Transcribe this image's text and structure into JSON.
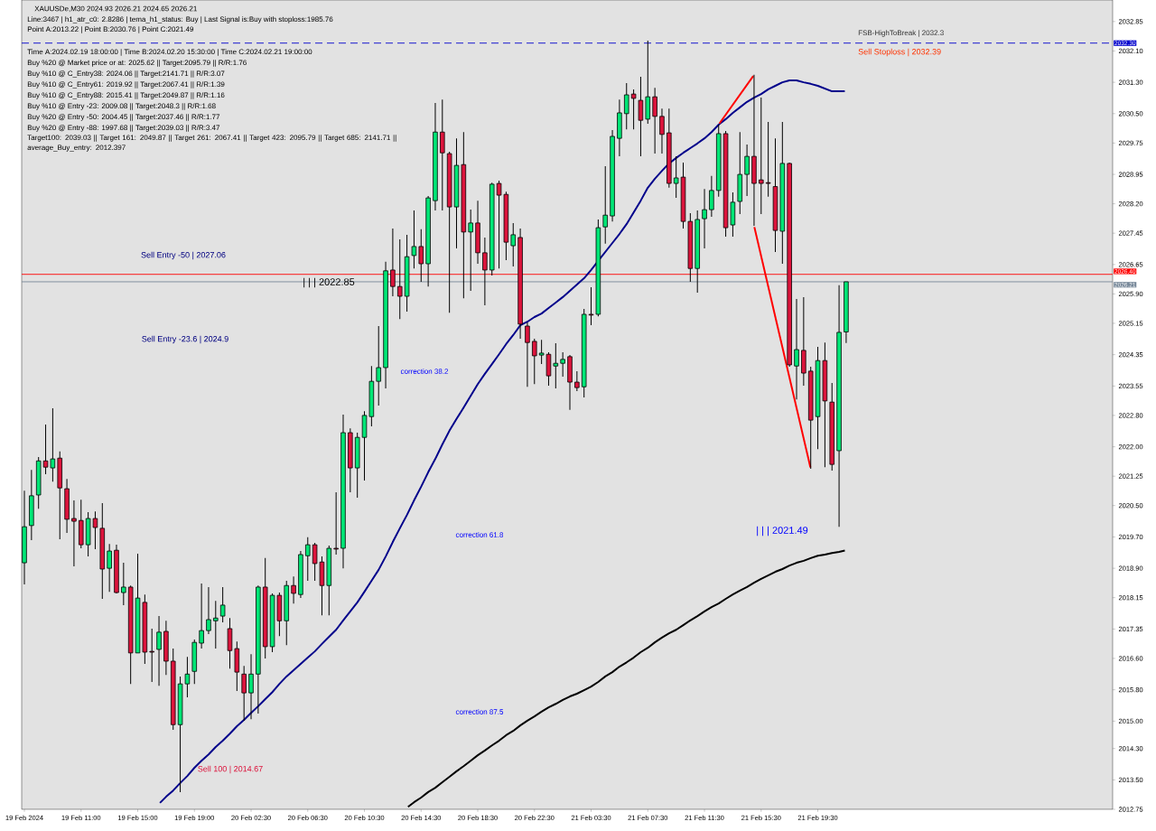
{
  "chart_data": {
    "type": "candlestick",
    "title": "XAUUSDe,M30  2024.93 2026.21 2024.65 2026.21",
    "categories": [
      "19 Feb 2024",
      null,
      null,
      null,
      null,
      null,
      null,
      null,
      "19 Feb 11:00",
      null,
      null,
      null,
      null,
      null,
      null,
      null,
      "19 Feb 15:00",
      null,
      null,
      null,
      null,
      null,
      null,
      null,
      "19 Feb 19:00",
      null,
      null,
      null,
      null,
      null,
      null,
      null,
      "20 Feb 02:30",
      null,
      null,
      null,
      null,
      null,
      null,
      null,
      "20 Feb 06:30",
      null,
      null,
      null,
      null,
      null,
      null,
      null,
      "20 Feb 10:30",
      null,
      null,
      null,
      null,
      null,
      null,
      null,
      "20 Feb 14:30",
      null,
      null,
      null,
      null,
      null,
      null,
      null,
      "20 Feb 18:30",
      null,
      null,
      null,
      null,
      null,
      null,
      null,
      "20 Feb 22:30",
      null,
      null,
      null,
      null,
      null,
      null,
      null,
      "21 Feb 03:30",
      null,
      null,
      null,
      null,
      null,
      null,
      null,
      "21 Feb 07:30",
      null,
      null,
      null,
      null,
      null,
      null,
      null,
      "21 Feb 11:30",
      null,
      null,
      null,
      null,
      null,
      null,
      null,
      "21 Feb 15:30",
      null,
      null,
      null,
      null,
      null,
      null,
      null,
      "21 Feb 19:30",
      null,
      null,
      null,
      null
    ],
    "series": [
      {
        "type": "candlestick",
        "ohlc": [
          [
            2019.04,
            2020.88,
            2018.49,
            2019.96
          ],
          [
            2019.99,
            2021.41,
            2019.62,
            2020.75
          ],
          [
            2020.77,
            2021.74,
            2020.42,
            2021.64
          ],
          [
            2021.64,
            2022.57,
            2021.3,
            2021.48
          ],
          [
            2021.46,
            2022.98,
            2021.11,
            2021.69
          ],
          [
            2021.71,
            2021.88,
            2019.64,
            2020.95
          ],
          [
            2020.93,
            2021.18,
            2019.8,
            2020.15
          ],
          [
            2020.17,
            2020.63,
            2018.95,
            2020.1
          ],
          [
            2020.12,
            2020.65,
            2019.41,
            2019.5
          ],
          [
            2019.5,
            2020.33,
            2019.2,
            2020.17
          ],
          [
            2020.17,
            2020.35,
            2019.39,
            2019.94
          ],
          [
            2019.92,
            2020.56,
            2018.12,
            2018.88
          ],
          [
            2018.9,
            2019.52,
            2018.3,
            2019.34
          ],
          [
            2019.36,
            2019.5,
            2018.26,
            2018.28
          ],
          [
            2018.28,
            2019.04,
            2017.96,
            2018.42
          ],
          [
            2018.42,
            2018.46,
            2015.95,
            2016.74
          ],
          [
            2016.74,
            2019.27,
            2016.74,
            2018.14
          ],
          [
            2018.03,
            2018.23,
            2016.46,
            2016.76
          ],
          [
            2016.78,
            2017.36,
            2016.0,
            2016.76
          ],
          [
            2016.83,
            2017.68,
            2015.9,
            2017.27
          ],
          [
            2017.29,
            2017.56,
            2016.18,
            2016.53
          ],
          [
            2016.53,
            2016.85,
            2014.78,
            2014.91
          ],
          [
            2014.91,
            2016.14,
            2013.19,
            2015.95
          ],
          [
            2015.95,
            2016.64,
            2015.61,
            2016.2
          ],
          [
            2016.27,
            2017.08,
            2015.95,
            2017.01
          ],
          [
            2016.99,
            2018.51,
            2016.85,
            2017.31
          ],
          [
            2017.31,
            2018.42,
            2017.22,
            2017.59
          ],
          [
            2017.56,
            2018.07,
            2016.85,
            2017.63
          ],
          [
            2017.68,
            2018.42,
            2017.52,
            2017.96
          ],
          [
            2017.36,
            2017.63,
            2016.34,
            2016.8
          ],
          [
            2016.85,
            2017.03,
            2015.77,
            2016.25
          ],
          [
            2016.2,
            2016.41,
            2015.01,
            2015.72
          ],
          [
            2015.72,
            2016.71,
            2015.05,
            2016.2
          ],
          [
            2016.2,
            2018.46,
            2015.19,
            2018.42
          ],
          [
            2018.42,
            2019.16,
            2016.6,
            2016.9
          ],
          [
            2016.9,
            2018.26,
            2016.76,
            2018.21
          ],
          [
            2018.21,
            2018.28,
            2017.17,
            2017.56
          ],
          [
            2017.56,
            2018.58,
            2016.94,
            2018.46
          ],
          [
            2018.46,
            2018.69,
            2018.0,
            2018.26
          ],
          [
            2018.23,
            2019.34,
            2018.14,
            2019.25
          ],
          [
            2019.22,
            2019.69,
            2018.58,
            2019.5
          ],
          [
            2019.5,
            2019.55,
            2018.58,
            2019.02
          ],
          [
            2019.06,
            2019.2,
            2017.7,
            2018.46
          ],
          [
            2018.46,
            2019.48,
            2017.7,
            2019.41
          ],
          [
            2019.41,
            2020.84,
            2019.25,
            2019.39
          ],
          [
            2019.41,
            2022.82,
            2018.9,
            2022.36
          ],
          [
            2022.36,
            2022.47,
            2020.84,
            2021.46
          ],
          [
            2021.46,
            2022.36,
            2020.7,
            2022.24
          ],
          [
            2022.24,
            2022.91,
            2021.14,
            2022.8
          ],
          [
            2022.77,
            2024.06,
            2022.52,
            2023.67
          ],
          [
            2023.67,
            2025.08,
            2023.05,
            2024.02
          ],
          [
            2024.02,
            2026.72,
            2023.49,
            2026.49
          ],
          [
            2026.51,
            2027.57,
            2025.84,
            2026.09
          ],
          [
            2026.09,
            2027.29,
            2025.26,
            2025.84
          ],
          [
            2025.84,
            2027.41,
            2025.45,
            2026.85
          ],
          [
            2026.88,
            2028.03,
            2026.55,
            2027.11
          ],
          [
            2027.11,
            2027.55,
            2026.21,
            2026.67
          ],
          [
            2026.67,
            2028.4,
            2026.09,
            2028.35
          ],
          [
            2028.28,
            2030.77,
            2028.03,
            2030.03
          ],
          [
            2030.03,
            2030.86,
            2028.03,
            2029.5
          ],
          [
            2029.48,
            2029.53,
            2025.42,
            2028.12
          ],
          [
            2028.12,
            2029.87,
            2027.06,
            2029.18
          ],
          [
            2029.2,
            2030.03,
            2025.79,
            2027.48
          ],
          [
            2027.48,
            2028.05,
            2025.98,
            2027.71
          ],
          [
            2027.71,
            2028.28,
            2026.67,
            2026.95
          ],
          [
            2026.95,
            2027.34,
            2025.61,
            2026.51
          ],
          [
            2026.51,
            2028.74,
            2026.37,
            2028.7
          ],
          [
            2028.72,
            2028.79,
            2026.55,
            2028.42
          ],
          [
            2028.44,
            2028.51,
            2026.76,
            2027.22
          ],
          [
            2027.13,
            2027.71,
            2026.6,
            2027.41
          ],
          [
            2027.34,
            2027.57,
            2024.76,
            2025.13
          ],
          [
            2025.08,
            2025.17,
            2023.53,
            2024.66
          ],
          [
            2024.69,
            2024.76,
            2023.6,
            2024.32
          ],
          [
            2024.34,
            2024.73,
            2024.11,
            2024.39
          ],
          [
            2024.36,
            2024.41,
            2023.56,
            2023.81
          ],
          [
            2024.06,
            2024.64,
            2023.49,
            2024.13
          ],
          [
            2024.13,
            2024.41,
            2023.79,
            2024.23
          ],
          [
            2024.3,
            2024.34,
            2022.94,
            2023.65
          ],
          [
            2023.65,
            2023.93,
            2023.42,
            2023.51
          ],
          [
            2023.53,
            2025.52,
            2023.26,
            2025.38
          ],
          [
            2025.38,
            2026.07,
            2025.1,
            2025.36
          ],
          [
            2025.38,
            2027.8,
            2025.33,
            2027.59
          ],
          [
            2027.61,
            2029.16,
            2027.18,
            2027.91
          ],
          [
            2027.89,
            2030.08,
            2027.75,
            2029.92
          ],
          [
            2029.87,
            2030.86,
            2029.41,
            2030.52
          ],
          [
            2030.5,
            2031.28,
            2030.1,
            2030.98
          ],
          [
            2031.0,
            2031.12,
            2030.1,
            2030.89
          ],
          [
            2030.84,
            2031.44,
            2029.41,
            2030.33
          ],
          [
            2030.36,
            2032.36,
            2030.24,
            2030.93
          ],
          [
            2030.93,
            2031.16,
            2029.48,
            2030.43
          ],
          [
            2030.43,
            2030.63,
            2029.48,
            2029.97
          ],
          [
            2030.01,
            2030.63,
            2028.61,
            2028.72
          ],
          [
            2028.72,
            2029.41,
            2028.35,
            2028.86
          ],
          [
            2028.88,
            2029.25,
            2027.57,
            2027.75
          ],
          [
            2027.75,
            2027.96,
            2026.21,
            2026.55
          ],
          [
            2026.55,
            2028.03,
            2025.93,
            2027.8
          ],
          [
            2027.82,
            2028.58,
            2027.06,
            2028.05
          ],
          [
            2028.05,
            2028.91,
            2027.87,
            2028.54
          ],
          [
            2028.54,
            2030.22,
            2028.38,
            2029.99
          ],
          [
            2029.99,
            2030.06,
            2027.36,
            2027.59
          ],
          [
            2027.66,
            2028.49,
            2027.36,
            2028.24
          ],
          [
            2028.26,
            2030.03,
            2027.94,
            2028.95
          ],
          [
            2028.95,
            2029.71,
            2028.4,
            2029.41
          ],
          [
            2029.41,
            2031.49,
            2027.64,
            2028.72
          ],
          [
            2028.81,
            2030.91,
            2027.94,
            2028.72
          ],
          [
            2028.74,
            2030.29,
            2028.38,
            2028.72
          ],
          [
            2028.64,
            2029.87,
            2026.97,
            2027.52
          ],
          [
            2027.5,
            2030.29,
            2026.67,
            2029.23
          ],
          [
            2029.23,
            2029.25,
            2024.04,
            2024.09
          ],
          [
            2024.06,
            2025.77,
            2023.21,
            2024.48
          ],
          [
            2024.46,
            2025.82,
            2023.56,
            2023.88
          ],
          [
            2023.93,
            2024.04,
            2021.44,
            2022.68
          ],
          [
            2022.77,
            2024.55,
            2021.94,
            2024.2
          ],
          [
            2024.2,
            2024.66,
            2021.48,
            2023.17
          ],
          [
            2023.14,
            2023.63,
            2021.39,
            2021.55
          ],
          [
            2021.9,
            2026.12,
            2019.96,
            2024.92
          ],
          [
            2024.93,
            2026.21,
            2024.65,
            2026.21
          ]
        ],
        "colors": [
          "#00e676",
          "#00e676",
          "#00e676",
          "#dc143c",
          "#00e676",
          "#dc143c",
          "#dc143c",
          "#dc143c",
          "#dc143c",
          "#00e676",
          "#dc143c",
          "#dc143c",
          "#00e676",
          "#dc143c",
          "#00e676",
          "#dc143c",
          "#00e676",
          "#dc143c",
          "#dc143c",
          "#00e676",
          "#dc143c",
          "#dc143c",
          "#00e676",
          "#00e676",
          "#00e676",
          "#00e676",
          "#00e676",
          "#00e676",
          "#00e676",
          "#dc143c",
          "#dc143c",
          "#dc143c",
          "#00e676",
          "#00e676",
          "#dc143c",
          "#00e676",
          "#dc143c",
          "#00e676",
          "#dc143c",
          "#00e676",
          "#00e676",
          "#dc143c",
          "#dc143c",
          "#00e676",
          "#dc143c",
          "#00e676",
          "#dc143c",
          "#00e676",
          "#00e676",
          "#00e676",
          "#00e676",
          "#00e676",
          "#dc143c",
          "#dc143c",
          "#00e676",
          "#00e676",
          "#dc143c",
          "#00e676",
          "#00e676",
          "#dc143c",
          "#dc143c",
          "#00e676",
          "#dc143c",
          "#00e676",
          "#dc143c",
          "#dc143c",
          "#00e676",
          "#dc143c",
          "#dc143c",
          "#00e676",
          "#dc143c",
          "#dc143c",
          "#dc143c",
          "#00e676",
          "#dc143c",
          "#00e676",
          "#00e676",
          "#dc143c",
          "#dc143c",
          "#00e676",
          "#dc143c",
          "#00e676",
          "#00e676",
          "#00e676",
          "#00e676",
          "#00e676",
          "#dc143c",
          "#dc143c",
          "#00e676",
          "#dc143c",
          "#dc143c",
          "#dc143c",
          "#00e676",
          "#dc143c",
          "#dc143c",
          "#00e676",
          "#00e676",
          "#00e676",
          "#00e676",
          "#dc143c",
          "#00e676",
          "#00e676",
          "#00e676",
          "#dc143c",
          "#dc143c",
          "#dc143c",
          "#dc143c",
          "#00e676",
          "#dc143c",
          "#00e676",
          "#dc143c",
          "#dc143c",
          "#00e676",
          "#dc143c",
          "#dc143c",
          "#00e676",
          "#00e676"
        ]
      },
      {
        "type": "line",
        "color": "#00008b",
        "values": [
          null,
          null,
          null,
          null,
          null,
          null,
          null,
          null,
          null,
          null,
          null,
          null,
          null,
          null,
          null,
          null,
          null,
          null,
          null,
          2012.89,
          2013.07,
          2013.23,
          2013.42,
          2013.6,
          2013.81,
          2013.99,
          2014.15,
          2014.34,
          2014.5,
          2014.68,
          2014.87,
          2015.03,
          2015.21,
          2015.38,
          2015.56,
          2015.74,
          2015.95,
          2016.14,
          2016.3,
          2016.46,
          2016.62,
          2016.78,
          2016.97,
          2017.15,
          2017.33,
          2017.57,
          2017.8,
          2018.03,
          2018.3,
          2018.58,
          2018.86,
          2019.2,
          2019.57,
          2019.92,
          2020.26,
          2020.63,
          2020.98,
          2021.35,
          2021.69,
          2022.06,
          2022.41,
          2022.71,
          2023.0,
          2023.3,
          2023.6,
          2023.86,
          2024.11,
          2024.36,
          2024.62,
          2024.85,
          2025.1,
          2025.19,
          2025.31,
          2025.4,
          2025.54,
          2025.68,
          2025.82,
          2025.98,
          2026.14,
          2026.3,
          2026.51,
          2026.74,
          2026.97,
          2027.2,
          2027.43,
          2027.68,
          2027.98,
          2028.28,
          2028.61,
          2028.84,
          2029.04,
          2029.23,
          2029.37,
          2029.5,
          2029.62,
          2029.74,
          2029.87,
          2030.03,
          2030.22,
          2030.36,
          2030.52,
          2030.66,
          2030.8,
          2030.91,
          2031.0,
          2031.12,
          2031.21,
          2031.3,
          2031.35,
          2031.35,
          2031.3,
          2031.26,
          2031.21,
          2031.14,
          2031.07,
          2031.07,
          2031.07
        ]
      },
      {
        "type": "line",
        "color": "#000000",
        "values": [
          null,
          null,
          null,
          null,
          null,
          null,
          null,
          null,
          null,
          null,
          null,
          null,
          null,
          null,
          null,
          null,
          null,
          null,
          null,
          null,
          null,
          null,
          null,
          null,
          null,
          null,
          null,
          null,
          null,
          null,
          null,
          null,
          null,
          null,
          null,
          null,
          null,
          null,
          null,
          null,
          null,
          null,
          null,
          null,
          null,
          null,
          null,
          null,
          null,
          null,
          null,
          null,
          null,
          null,
          2012.79,
          2012.93,
          2013.05,
          2013.19,
          2013.3,
          2013.44,
          2013.58,
          2013.72,
          2013.85,
          2013.99,
          2014.13,
          2014.25,
          2014.38,
          2014.5,
          2014.64,
          2014.75,
          2014.89,
          2015.01,
          2015.12,
          2015.24,
          2015.35,
          2015.44,
          2015.54,
          2015.63,
          2015.7,
          2015.79,
          2015.88,
          2016.0,
          2016.14,
          2016.25,
          2016.39,
          2016.5,
          2016.62,
          2016.76,
          2016.87,
          2017.01,
          2017.13,
          2017.24,
          2017.33,
          2017.45,
          2017.57,
          2017.68,
          2017.8,
          2017.91,
          2018.0,
          2018.12,
          2018.23,
          2018.33,
          2018.42,
          2018.53,
          2018.63,
          2018.72,
          2018.81,
          2018.88,
          2018.97,
          2019.04,
          2019.09,
          2019.16,
          2019.22,
          2019.25,
          2019.29,
          2019.32,
          2019.36
        ]
      },
      {
        "type": "line",
        "color": "#ff0000",
        "values": [
          null,
          null,
          null,
          null,
          null,
          null,
          null,
          null,
          null,
          null,
          null,
          null,
          null,
          null,
          null,
          null,
          null,
          null,
          null,
          null,
          null,
          null,
          null,
          null,
          null,
          null,
          null,
          null,
          null,
          null,
          null,
          null,
          null,
          null,
          null,
          null,
          null,
          null,
          null,
          null,
          null,
          null,
          null,
          null,
          null,
          null,
          null,
          null,
          null,
          null,
          null,
          null,
          null,
          null,
          null,
          null,
          null,
          null,
          null,
          null,
          null,
          null,
          null,
          null,
          null,
          null,
          null,
          null,
          null,
          null,
          null,
          null,
          null,
          null,
          null,
          null,
          null,
          null,
          null,
          null,
          null,
          null,
          null,
          null,
          null,
          null,
          null,
          null,
          null,
          null,
          null,
          null,
          null,
          null,
          null,
          null,
          null,
          null,
          2030.22,
          null,
          null,
          null,
          null,
          2031.49,
          null,
          null,
          null,
          null,
          null,
          null,
          null,
          null,
          null,
          null,
          null,
          null,
          null
        ]
      },
      {
        "type": "line",
        "color": "#ff0000",
        "values": [
          null,
          null,
          null,
          null,
          null,
          null,
          null,
          null,
          null,
          null,
          null,
          null,
          null,
          null,
          null,
          null,
          null,
          null,
          null,
          null,
          null,
          null,
          null,
          null,
          null,
          null,
          null,
          null,
          null,
          null,
          null,
          null,
          null,
          null,
          null,
          null,
          null,
          null,
          null,
          null,
          null,
          null,
          null,
          null,
          null,
          null,
          null,
          null,
          null,
          null,
          null,
          null,
          null,
          null,
          null,
          null,
          null,
          null,
          null,
          null,
          null,
          null,
          null,
          null,
          null,
          null,
          null,
          null,
          null,
          null,
          null,
          null,
          null,
          null,
          null,
          null,
          null,
          null,
          null,
          null,
          null,
          null,
          null,
          null,
          null,
          null,
          null,
          null,
          null,
          null,
          null,
          null,
          null,
          null,
          null,
          null,
          null,
          null,
          null,
          null,
          null,
          null,
          null,
          2027.64,
          null,
          null,
          null,
          null,
          null,
          null,
          null,
          2021.44,
          null,
          null,
          null,
          null,
          null
        ]
      }
    ],
    "ylim": [
      2012.75,
      2033.4
    ],
    "yticks": [
      2012.75,
      {
        "value": 2013.5,
        "label": "2013.50"
      },
      {
        "value": 2014.3,
        "label": "2014.30"
      },
      {
        "value": 2015.0,
        "label": "2015.00"
      },
      {
        "value": 2015.8,
        "label": "2015.80"
      },
      {
        "value": 2016.6,
        "label": "2016.60"
      },
      2017.35,
      2018.15,
      {
        "value": 2018.9,
        "label": "2018.90"
      },
      {
        "value": 2019.7,
        "label": "2019.70"
      },
      {
        "value": 2020.5,
        "label": "2020.50"
      },
      2021.25,
      {
        "value": 2022.0,
        "label": "2022.00"
      },
      {
        "value": 2022.8,
        "label": "2022.80"
      },
      2023.55,
      2024.35,
      2025.15,
      {
        "value": 2025.9,
        "label": "2025.90"
      },
      2026.65,
      2027.45,
      {
        "value": 2028.2,
        "label": "2028.20"
      },
      2028.95,
      2029.75,
      {
        "value": 2030.5,
        "label": "2030.50"
      },
      {
        "value": 2031.3,
        "label": "2031.30"
      },
      {
        "value": 2032.1,
        "label": "2032.10"
      },
      2032.85
    ],
    "ref_lines": [
      {
        "axis": "y",
        "value": 2032.3,
        "label": "2032.30",
        "color": "#0000cd",
        "line_style": "dashed"
      },
      {
        "axis": "y",
        "value": 2026.4,
        "label": "2026.40",
        "color": "#ff0000",
        "line_style": "solid"
      },
      {
        "axis": "y",
        "value": 2026.21,
        "label": "2026.21",
        "color": "#778899",
        "line_style": "solid"
      }
    ],
    "annotations": [
      "Line:3467 | h1_atr_c0: 2.8286 | tema_h1_status: Buy | Last Signal is:Buy with stoploss:1985.76",
      "Point A:2013.22 | Point B:2030.76 | Point C:2021.49",
      "Time A:2024.02.19 18:00:00 | Time B:2024.02.20 15:30:00 | Time C:2024.02.21 19:00:00",
      "Buy %20 @ Market price or at: 2025.62 || Target:2095.79 || R/R:1.76",
      "Buy %10 @ C_Entry38: 2024.06 || Target:2141.71 || R/R:3.07",
      "Buy %10 @ C_Entry61: 2019.92 || Target:2067.41 || R/R:1.39",
      "Buy %10 @ C_Entry88: 2015.41 || Target:2049.87 || R/R:1.16",
      "Buy %10 @ Entry -23: 2009.08 || Target:2048.3 || R/R:1.68",
      "Buy %20 @ Entry -50: 2004.45 || Target:2037.46 || R/R:1.77",
      "Buy %20 @ Entry -88: 1997.68 || Target:2039.03 || R/R:3.47",
      "Target100: 2039.03 || Target 161: 2049.87 || Target 261: 2067.41 || Target 423: 2095.79 || Target 685: 2141.71 || average_Buy_entry: 2012.397",
      "FSB-HighToBreak | 2032.3",
      "Sell Stoploss | 2032.39",
      "Sell Entry -50 | 2027.06",
      "Sell Entry -23.6 | 2024.9",
      "Sell 100 | 2014.67",
      "| | | 2022.85",
      "correction 38.2",
      "correction 61.8",
      "correction 87.5",
      "| | | 2021.49"
    ]
  }
}
